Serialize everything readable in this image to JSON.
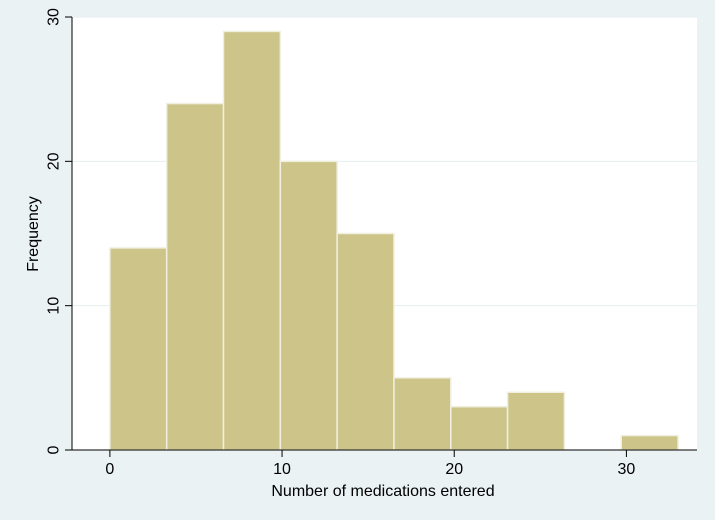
{
  "chart_data": {
    "type": "bar",
    "title": "",
    "xlabel": "Number of medications entered",
    "ylabel": "Frequency",
    "bins": [
      {
        "start": 0.0,
        "end": 3.3,
        "value": 14
      },
      {
        "start": 3.3,
        "end": 6.6,
        "value": 24
      },
      {
        "start": 6.6,
        "end": 9.9,
        "value": 29
      },
      {
        "start": 9.9,
        "end": 13.2,
        "value": 20
      },
      {
        "start": 13.2,
        "end": 16.5,
        "value": 15
      },
      {
        "start": 16.5,
        "end": 19.8,
        "value": 5
      },
      {
        "start": 19.8,
        "end": 23.1,
        "value": 3
      },
      {
        "start": 23.1,
        "end": 26.4,
        "value": 4
      },
      {
        "start": 26.4,
        "end": 29.7,
        "value": 0
      },
      {
        "start": 29.7,
        "end": 33.0,
        "value": 1
      }
    ],
    "xticks": [
      0,
      10,
      20,
      30
    ],
    "yticks": [
      0,
      10,
      20,
      30
    ],
    "xlim": [
      -2.2,
      34.1
    ],
    "ylim": [
      0,
      30
    ],
    "grid": "horizontal",
    "legend": "none",
    "colors": {
      "bar_fill": "#ccc488",
      "bar_edge": "#f0efe0",
      "plot_background": "#ffffff",
      "page_background": "#eaf2f3",
      "grid": "#e6eef0"
    }
  }
}
